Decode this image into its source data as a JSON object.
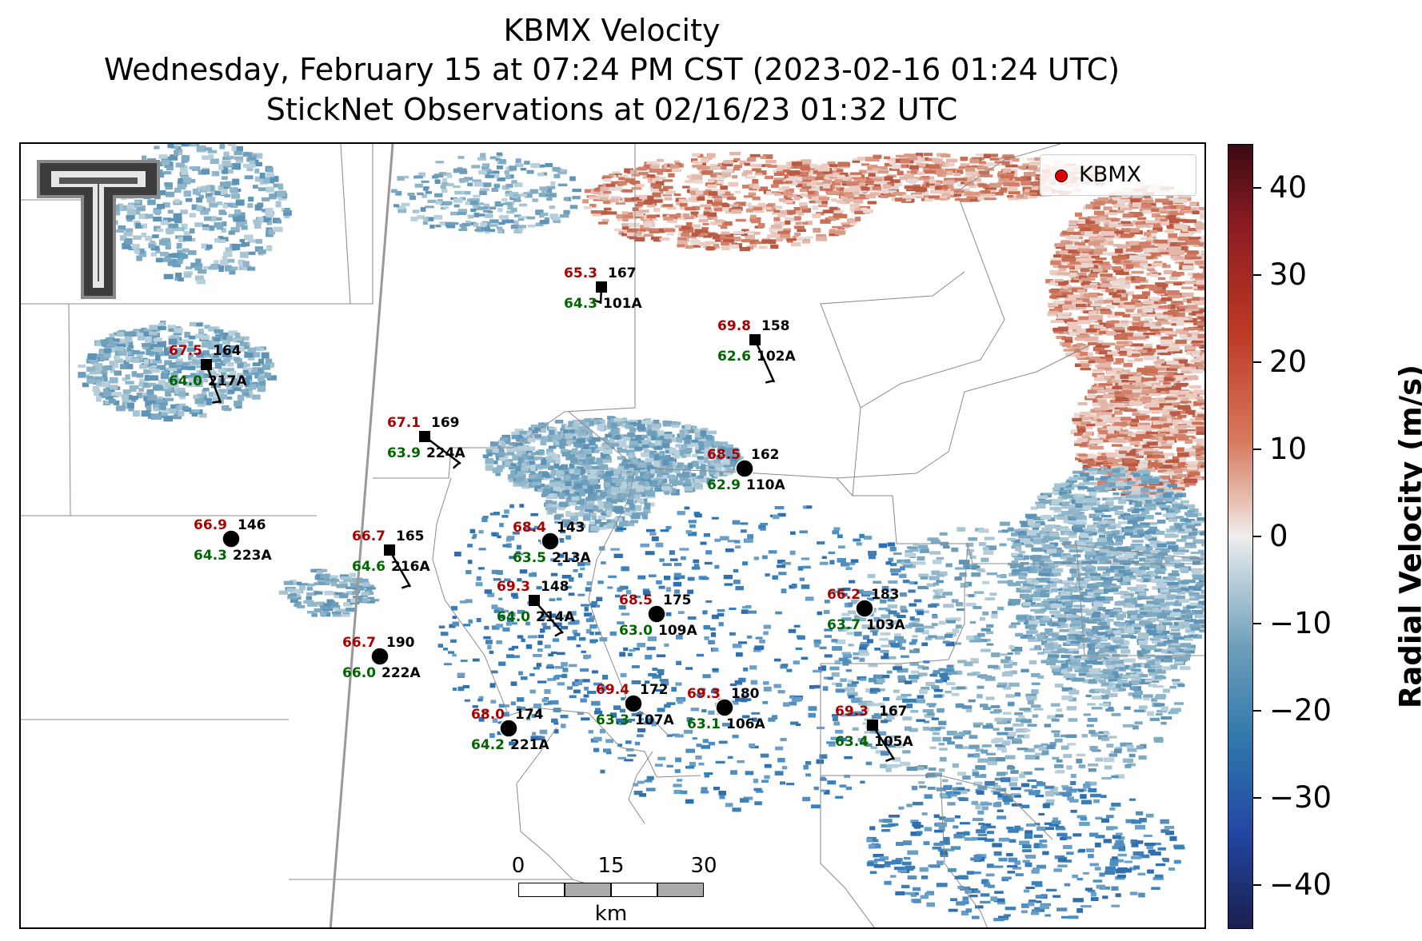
{
  "titles": {
    "line1": "KBMX Velocity",
    "line2": "Wednesday, February 15 at 07:24 PM CST (2023-02-16 01:24 UTC)",
    "line3": "StickNet Observations at 02/16/23 01:32 UTC"
  },
  "legend": {
    "label": "KBMX",
    "marker_color": "#e00000"
  },
  "colorbar": {
    "title": "Radial Velocity (m/s)",
    "range": [
      -45,
      45
    ],
    "ticks": [
      "40",
      "30",
      "20",
      "10",
      "0",
      "−10",
      "−20",
      "−30",
      "−40"
    ],
    "tick_values": [
      40,
      30,
      20,
      10,
      0,
      -10,
      -20,
      -30,
      -40
    ]
  },
  "scalebar": {
    "labels": [
      "0",
      "15",
      "30"
    ],
    "unit": "km"
  },
  "logo": {
    "text": "TT",
    "description": "texas-tech-double-t-logo"
  },
  "colors": {
    "temperature": "#aa0000",
    "dewpoint": "#006600",
    "station": "#000000"
  },
  "stations": [
    {
      "id": "101A",
      "temp": "65.3",
      "dew": "64.3",
      "pressure": "167",
      "marker": "square"
    },
    {
      "id": "102A",
      "temp": "69.8",
      "dew": "62.6",
      "pressure": "158",
      "marker": "square"
    },
    {
      "id": "217A",
      "temp": "67.5",
      "dew": "64.0",
      "pressure": "164",
      "marker": "square"
    },
    {
      "id": "224A",
      "temp": "67.1",
      "dew": "63.9",
      "pressure": "169",
      "marker": "square"
    },
    {
      "id": "110A",
      "temp": "68.5",
      "dew": "62.9",
      "pressure": "162",
      "marker": "circle"
    },
    {
      "id": "223A",
      "temp": "66.9",
      "dew": "64.3",
      "pressure": "146",
      "marker": "circle"
    },
    {
      "id": "216A",
      "temp": "66.7",
      "dew": "64.6",
      "pressure": "165",
      "marker": "square"
    },
    {
      "id": "213A",
      "temp": "68.4",
      "dew": "63.5",
      "pressure": "143",
      "marker": "circle"
    },
    {
      "id": "214A",
      "temp": "69.3",
      "dew": "64.0",
      "pressure": "148",
      "marker": "square"
    },
    {
      "id": "109A",
      "temp": "68.5",
      "dew": "63.0",
      "pressure": "175",
      "marker": "circle"
    },
    {
      "id": "103A",
      "temp": "66.2",
      "dew": "63.7",
      "pressure": "183",
      "marker": "circle"
    },
    {
      "id": "222A",
      "temp": "66.7",
      "dew": "66.0",
      "pressure": "190",
      "marker": "circle"
    },
    {
      "id": "107A",
      "temp": "69.4",
      "dew": "63.3",
      "pressure": "172",
      "marker": "circle"
    },
    {
      "id": "106A",
      "temp": "69.3",
      "dew": "63.1",
      "pressure": "180",
      "marker": "circle"
    },
    {
      "id": "221A",
      "temp": "68.0",
      "dew": "64.2",
      "pressure": "174",
      "marker": "circle"
    },
    {
      "id": "105A",
      "temp": "69.3",
      "dew": "63.4",
      "pressure": "167",
      "marker": "square"
    }
  ]
}
